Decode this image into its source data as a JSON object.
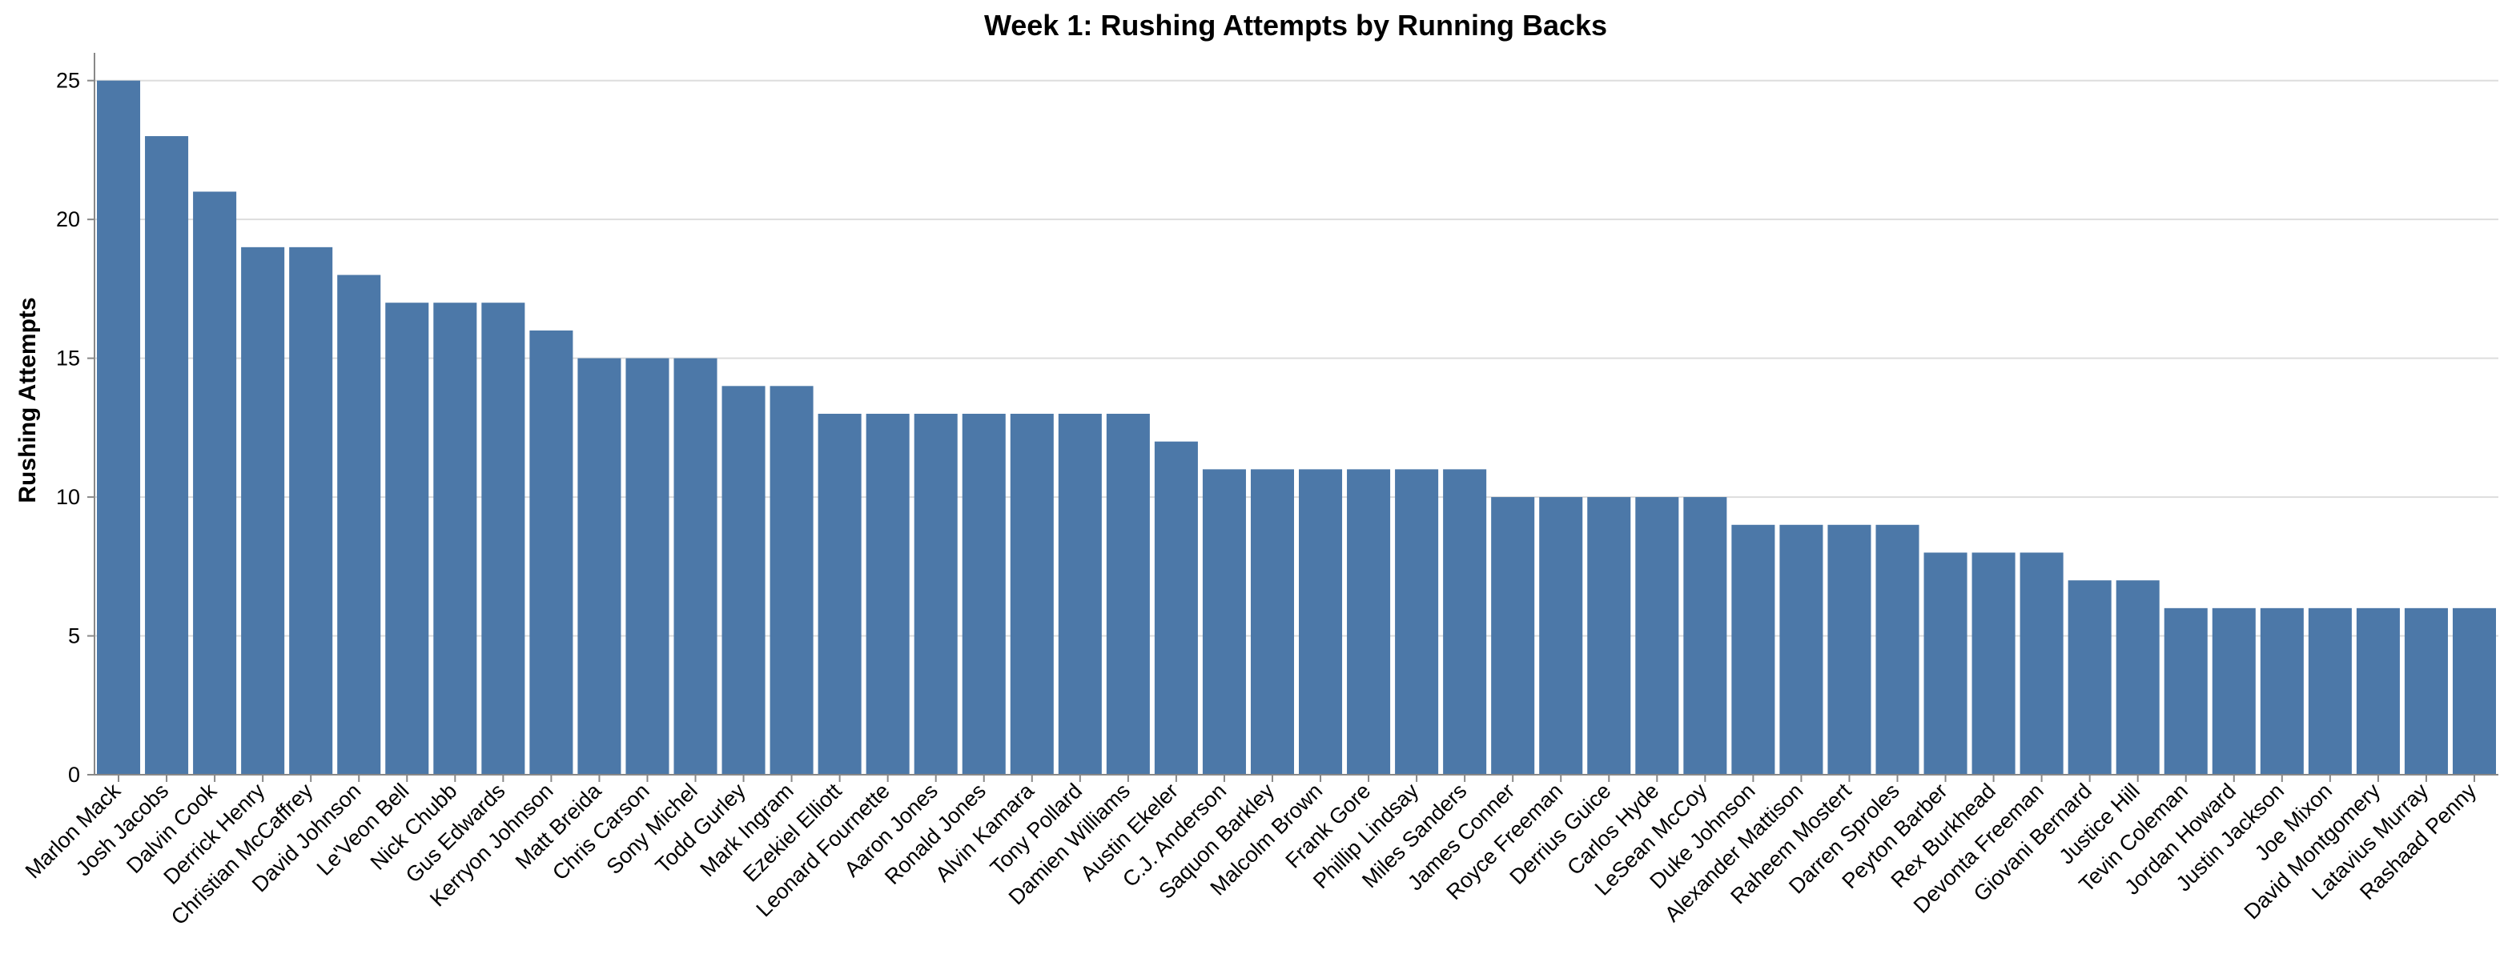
{
  "chart_data": {
    "type": "bar",
    "title": "Week 1: Rushing Attempts by Running Backs",
    "xlabel": "",
    "ylabel": "Rushing Attempts",
    "ylim": [
      0,
      26
    ],
    "yticks": [
      0,
      5,
      10,
      15,
      20,
      25
    ],
    "grid": true,
    "bar_color": "#4c78a8",
    "categories": [
      "Marlon Mack",
      "Josh Jacobs",
      "Dalvin Cook",
      "Derrick Henry",
      "Christian McCaffrey",
      "David Johnson",
      "Le'Veon Bell",
      "Nick Chubb",
      "Gus Edwards",
      "Kerryon Johnson",
      "Matt Breida",
      "Chris Carson",
      "Sony Michel",
      "Todd Gurley",
      "Mark Ingram",
      "Ezekiel Elliott",
      "Leonard Fournette",
      "Aaron Jones",
      "Ronald Jones",
      "Alvin Kamara",
      "Tony Pollard",
      "Damien Williams",
      "Austin Ekeler",
      "C.J. Anderson",
      "Saquon Barkley",
      "Malcolm Brown",
      "Frank Gore",
      "Phillip Lindsay",
      "Miles Sanders",
      "James Conner",
      "Royce Freeman",
      "Derrius Guice",
      "Carlos Hyde",
      "LeSean McCoy",
      "Duke Johnson",
      "Alexander Mattison",
      "Raheem Mostert",
      "Darren Sproles",
      "Peyton Barber",
      "Rex Burkhead",
      "Devonta Freeman",
      "Giovani Bernard",
      "Justice Hill",
      "Tevin Coleman",
      "Jordan Howard",
      "Justin Jackson",
      "Joe Mixon",
      "David Montgomery",
      "Latavius Murray",
      "Rashaad Penny"
    ],
    "values": [
      25,
      23,
      21,
      19,
      19,
      18,
      17,
      17,
      17,
      16,
      15,
      15,
      15,
      14,
      14,
      13,
      13,
      13,
      13,
      13,
      13,
      13,
      12,
      11,
      11,
      11,
      11,
      11,
      11,
      10,
      10,
      10,
      10,
      10,
      9,
      9,
      9,
      9,
      8,
      8,
      8,
      7,
      7,
      6,
      6,
      6,
      6,
      6,
      6,
      6
    ]
  }
}
